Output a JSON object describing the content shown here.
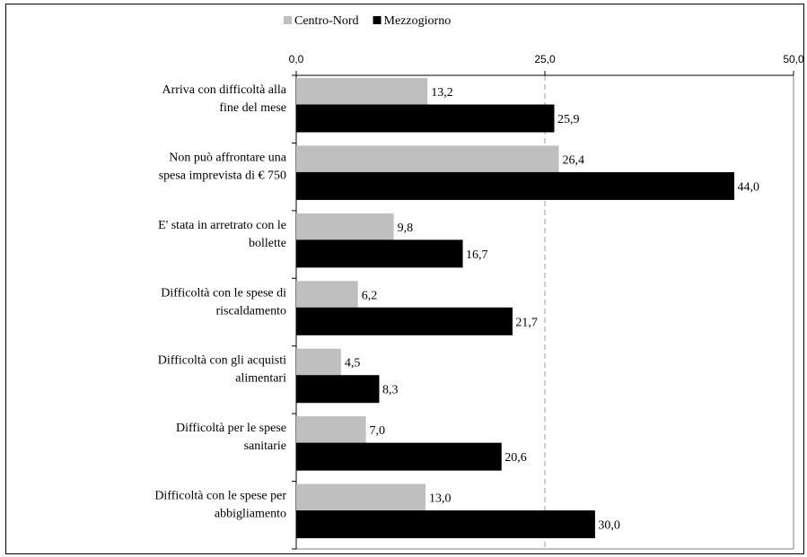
{
  "chart_data": {
    "type": "bar",
    "orientation": "horizontal",
    "categories": [
      [
        "Arriva con difficoltà alla",
        "fine del mese"
      ],
      [
        "Non può affrontare una",
        "spesa imprevista di € 750"
      ],
      [
        "E' stata in arretrato con le",
        "bollette"
      ],
      [
        "Difficoltà con le spese di",
        "riscaldamento"
      ],
      [
        "Difficoltà con gli acquisti",
        "alimentari"
      ],
      [
        "Difficoltà per le spese",
        "sanitarie"
      ],
      [
        "Difficoltà con le spese per",
        "abbigliamento"
      ]
    ],
    "series": [
      {
        "name": "Centro-Nord",
        "color": "#bfbfbf",
        "values": [
          13.2,
          26.4,
          9.8,
          6.2,
          4.5,
          7.0,
          13.0
        ],
        "labels": [
          "13,2",
          "26,4",
          "9,8",
          "6,2",
          "4,5",
          "7,0",
          "13,0"
        ]
      },
      {
        "name": "Mezzogiorno",
        "color": "#000000",
        "values": [
          25.9,
          44.0,
          16.7,
          21.7,
          8.3,
          20.6,
          30.0
        ],
        "labels": [
          "25,9",
          "44,0",
          "16,7",
          "21,7",
          "8,3",
          "20,6",
          "30,0"
        ]
      }
    ],
    "xlim": [
      0,
      50
    ],
    "ticks": [
      0,
      25,
      50
    ],
    "tick_labels": [
      "0,0",
      "25,0",
      "50,0"
    ],
    "axis_position": "top",
    "reference_line": 25,
    "legend_position": "top",
    "grid": false
  }
}
